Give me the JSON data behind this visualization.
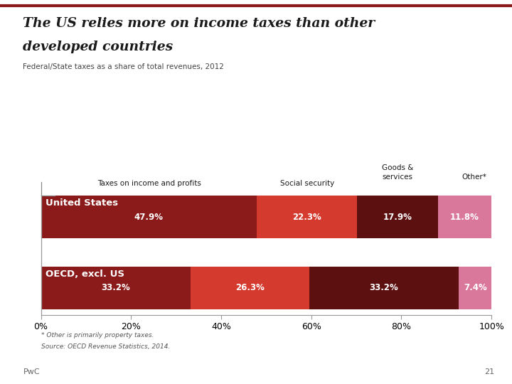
{
  "title_line1": "The US relies more on income taxes than other",
  "title_line2": "developed countries",
  "subtitle": "Federal/State taxes as a share of total revenues, 2012",
  "categories": [
    "United States",
    "OECD, excl. US"
  ],
  "segments": {
    "United States": [
      47.9,
      22.3,
      17.9,
      11.8
    ],
    "OECD, excl. US": [
      33.2,
      26.3,
      33.2,
      7.4
    ]
  },
  "colors": {
    "United States": [
      "#8B1A1A",
      "#D43A2E",
      "#5C1010",
      "#D9789A"
    ],
    "OECD, excl. US": [
      "#8B1A1A",
      "#D43A2E",
      "#5C1010",
      "#D9789A"
    ]
  },
  "footnote1": "* Other is primarily property taxes.",
  "footnote2": "Source: OECD Revenue Statistics, 2014.",
  "pwc_label": "PwC",
  "page_num": "21",
  "title_color": "#1A1A1A",
  "subtitle_color": "#444444",
  "background_color": "#FFFFFF",
  "bar_label_color": "#FFFFFF",
  "header_label_color": "#1A1A1A",
  "accent_line_color": "#8B1A1A"
}
